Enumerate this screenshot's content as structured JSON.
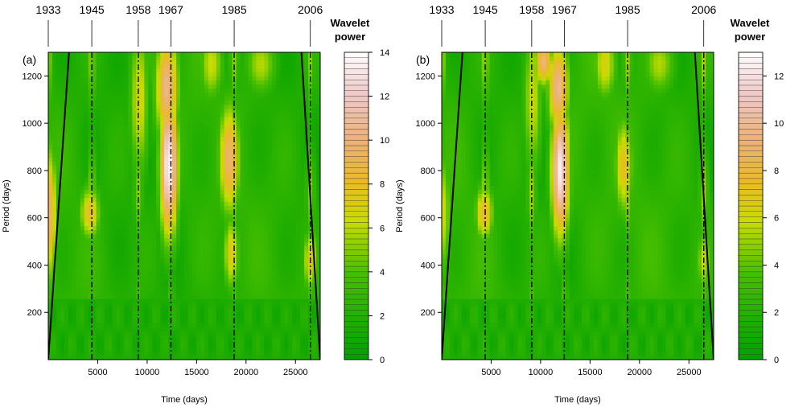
{
  "chart_data": [
    {
      "type": "heatmap",
      "panel_label": "(a)",
      "xlabel": "Time (days)",
      "ylabel": "Period (days)",
      "xlim": [
        0,
        27500
      ],
      "ylim": [
        0,
        1300
      ],
      "x_ticks": [
        5000,
        10000,
        15000,
        20000,
        25000
      ],
      "x_tick_labels": [
        "5000",
        "10000",
        "15000",
        "20000",
        "25000"
      ],
      "y_ticks": [
        200,
        400,
        600,
        800,
        1000,
        1200
      ],
      "y_tick_labels": [
        "200",
        "400",
        "600",
        "800",
        "1000",
        "1200"
      ],
      "event_years": [
        {
          "label": "1933",
          "day": 0
        },
        {
          "label": "1945",
          "day": 4400
        },
        {
          "label": "1958",
          "day": 9100
        },
        {
          "label": "1967",
          "day": 12400
        },
        {
          "label": "1985",
          "day": 18800
        },
        {
          "label": "2006",
          "day": 26500
        }
      ],
      "cone_of_influence": {
        "left": [
          [
            0,
            0
          ],
          [
            2100,
            1300
          ]
        ],
        "right": [
          [
            27500,
            0
          ],
          [
            25600,
            1300
          ]
        ]
      },
      "power_max": 14,
      "hotspots": [
        {
          "day": 12200,
          "period": 820,
          "power": 13.8,
          "spread_day": 700,
          "spread_period": 230
        },
        {
          "day": 12000,
          "period": 1150,
          "power": 10.5,
          "spread_day": 900,
          "spread_period": 180
        },
        {
          "day": 18300,
          "period": 850,
          "power": 10,
          "spread_day": 800,
          "spread_period": 180
        },
        {
          "day": 18500,
          "period": 450,
          "power": 7.5,
          "spread_day": 600,
          "spread_period": 120
        },
        {
          "day": 4200,
          "period": 620,
          "power": 8,
          "spread_day": 800,
          "spread_period": 90
        },
        {
          "day": 200,
          "period": 620,
          "power": 9,
          "spread_day": 500,
          "spread_period": 220
        },
        {
          "day": 26500,
          "period": 420,
          "power": 8,
          "spread_day": 500,
          "spread_period": 100
        },
        {
          "day": 9200,
          "period": 1100,
          "power": 7,
          "spread_day": 700,
          "spread_period": 250
        },
        {
          "day": 16500,
          "period": 1250,
          "power": 6.5,
          "spread_day": 900,
          "spread_period": 120
        },
        {
          "day": 21500,
          "period": 1250,
          "power": 6,
          "spread_day": 1200,
          "spread_period": 100
        }
      ],
      "colorbar": {
        "title_line1": "Wavelet",
        "title_line2": "power",
        "min": 0,
        "max": 14,
        "ticks": [
          0,
          2,
          4,
          6,
          8,
          10,
          12,
          14
        ],
        "tick_labels": [
          "0",
          "2",
          "4",
          "6",
          "8",
          "10",
          "12",
          "14"
        ]
      }
    },
    {
      "type": "heatmap",
      "panel_label": "(b)",
      "xlabel": "Time (days)",
      "ylabel": "Period (days)",
      "xlim": [
        0,
        27500
      ],
      "ylim": [
        0,
        1300
      ],
      "x_ticks": [
        5000,
        10000,
        15000,
        20000,
        25000
      ],
      "x_tick_labels": [
        "5000",
        "10000",
        "15000",
        "20000",
        "25000"
      ],
      "y_ticks": [
        200,
        400,
        600,
        800,
        1000,
        1200
      ],
      "y_tick_labels": [
        "200",
        "400",
        "600",
        "800",
        "1000",
        "1200"
      ],
      "event_years": [
        {
          "label": "1933",
          "day": 0
        },
        {
          "label": "1945",
          "day": 4400
        },
        {
          "label": "1958",
          "day": 9100
        },
        {
          "label": "1967",
          "day": 12400
        },
        {
          "label": "1985",
          "day": 18800
        },
        {
          "label": "2006",
          "day": 26500
        }
      ],
      "cone_of_influence": {
        "left": [
          [
            0,
            0
          ],
          [
            2100,
            1300
          ]
        ],
        "right": [
          [
            27500,
            0
          ],
          [
            25600,
            1300
          ]
        ]
      },
      "power_max": 13,
      "hotspots": [
        {
          "day": 12000,
          "period": 800,
          "power": 12.5,
          "spread_day": 700,
          "spread_period": 220
        },
        {
          "day": 11800,
          "period": 1150,
          "power": 10,
          "spread_day": 800,
          "spread_period": 150
        },
        {
          "day": 10300,
          "period": 1260,
          "power": 9.5,
          "spread_day": 700,
          "spread_period": 80
        },
        {
          "day": 18400,
          "period": 820,
          "power": 7.5,
          "spread_day": 700,
          "spread_period": 160
        },
        {
          "day": 4300,
          "period": 620,
          "power": 8,
          "spread_day": 700,
          "spread_period": 90
        },
        {
          "day": 200,
          "period": 620,
          "power": 6,
          "spread_day": 500,
          "spread_period": 200
        },
        {
          "day": 26500,
          "period": 420,
          "power": 6,
          "spread_day": 500,
          "spread_period": 100
        },
        {
          "day": 9200,
          "period": 1100,
          "power": 6,
          "spread_day": 700,
          "spread_period": 250
        },
        {
          "day": 16500,
          "period": 1250,
          "power": 6.5,
          "spread_day": 900,
          "spread_period": 120
        },
        {
          "day": 22000,
          "period": 1250,
          "power": 5.5,
          "spread_day": 1200,
          "spread_period": 100
        }
      ],
      "colorbar": {
        "title_line1": "Wavelet",
        "title_line2": "power",
        "min": 0,
        "max": 13,
        "ticks": [
          0,
          2,
          4,
          6,
          8,
          10,
          12
        ],
        "tick_labels": [
          "0",
          "2",
          "4",
          "6",
          "8",
          "10",
          "12"
        ]
      }
    }
  ]
}
